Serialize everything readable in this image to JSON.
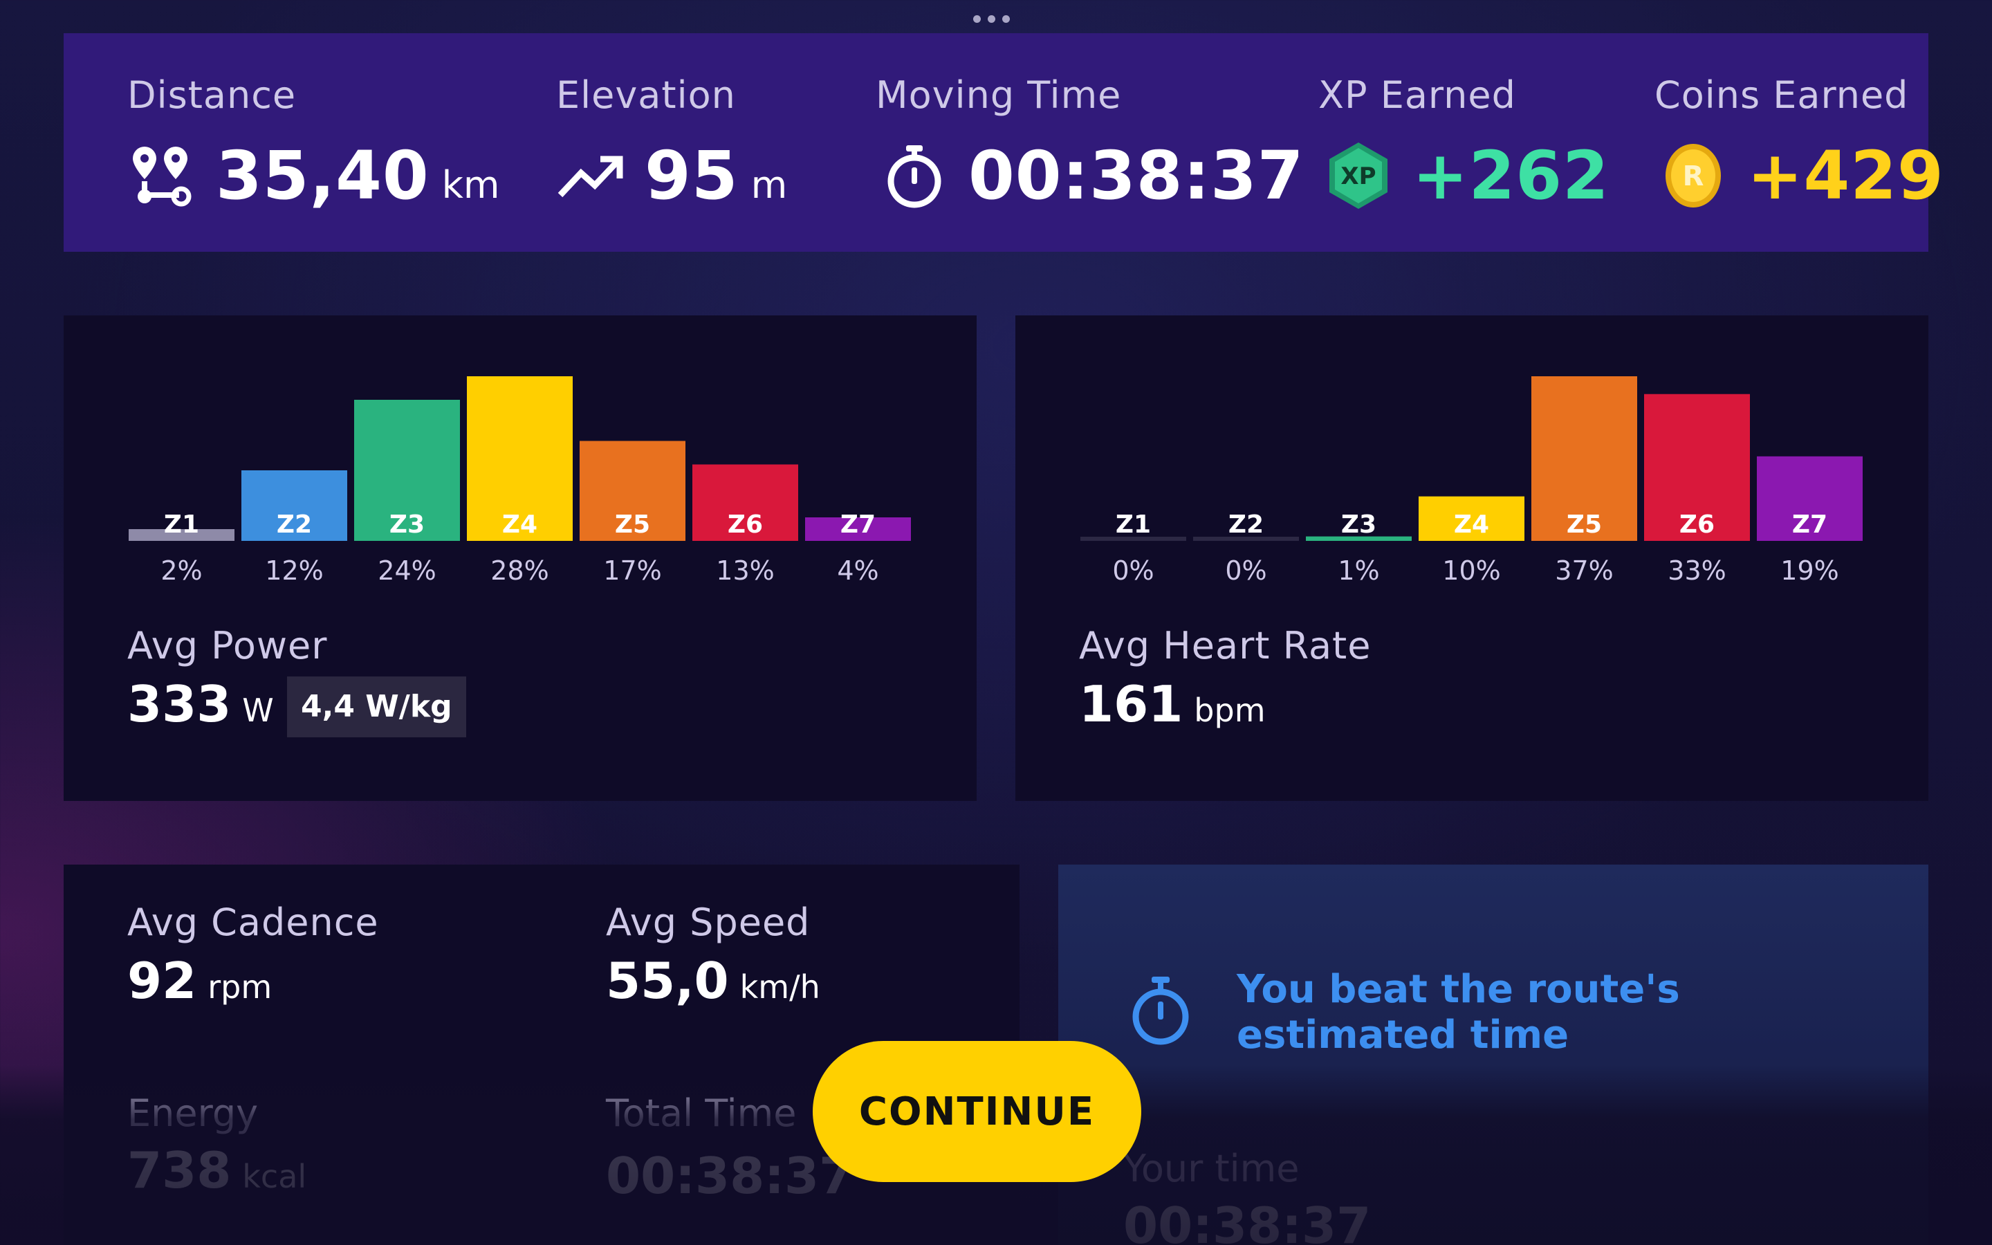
{
  "stats": {
    "distance": {
      "label": "Distance",
      "value": "35,40",
      "unit": "km",
      "icon": "route-pin-icon"
    },
    "elevation": {
      "label": "Elevation",
      "value": "95",
      "unit": "m",
      "icon": "trending-up-icon"
    },
    "moving_time": {
      "label": "Moving Time",
      "value": "00:38:37",
      "icon": "stopwatch-icon"
    },
    "xp": {
      "label": "XP Earned",
      "value": "+262",
      "badge_text": "XP",
      "icon": "xp-hexagon-icon",
      "color": "#3ee0a4"
    },
    "coins": {
      "label": "Coins Earned",
      "value": "+429",
      "badge_text": "R",
      "icon": "coin-icon",
      "color": "#ffd11a"
    }
  },
  "power": {
    "label": "Avg Power",
    "value": "333",
    "unit": "W",
    "wkg": "4,4 W/kg"
  },
  "heart_rate": {
    "label": "Avg Heart Rate",
    "value": "161",
    "unit": "bpm"
  },
  "chart_data": [
    {
      "type": "bar",
      "title": "",
      "categories": [
        "Z1",
        "Z2",
        "Z3",
        "Z4",
        "Z5",
        "Z6",
        "Z7"
      ],
      "values": [
        2,
        12,
        24,
        28,
        17,
        13,
        4
      ],
      "value_labels": [
        "2%",
        "12%",
        "24%",
        "28%",
        "17%",
        "13%",
        "4%"
      ],
      "colors": [
        "#8e8aa8",
        "#3d8fde",
        "#2ab37f",
        "#ffcf00",
        "#e8711f",
        "#d9183b",
        "#8b18b0"
      ],
      "ylim": [
        0,
        28
      ]
    },
    {
      "type": "bar",
      "title": "",
      "categories": [
        "Z1",
        "Z2",
        "Z3",
        "Z4",
        "Z5",
        "Z6",
        "Z7"
      ],
      "values": [
        0,
        0,
        1,
        10,
        37,
        33,
        19
      ],
      "value_labels": [
        "0%",
        "0%",
        "1%",
        "10%",
        "37%",
        "33%",
        "19%"
      ],
      "colors": [
        "#8e8aa8",
        "#3d8fde",
        "#2ab37f",
        "#ffcf00",
        "#e8711f",
        "#d9183b",
        "#8b18b0"
      ],
      "ylim": [
        0,
        37
      ]
    }
  ],
  "cadence": {
    "label": "Avg Cadence",
    "value": "92",
    "unit": "rpm"
  },
  "speed": {
    "label": "Avg Speed",
    "value": "55,0",
    "unit": "km/h"
  },
  "energy": {
    "label": "Energy",
    "value": "738",
    "unit": "kcal"
  },
  "total_time": {
    "label": "Total Time",
    "value": "00:38:37"
  },
  "route": {
    "message": "You beat the route's estimated time",
    "your_time_label": "Your time",
    "your_time_value": "00:38:37",
    "icon": "stopwatch-icon",
    "color": "#3d8ff0"
  },
  "continue_label": "CONTINUE"
}
